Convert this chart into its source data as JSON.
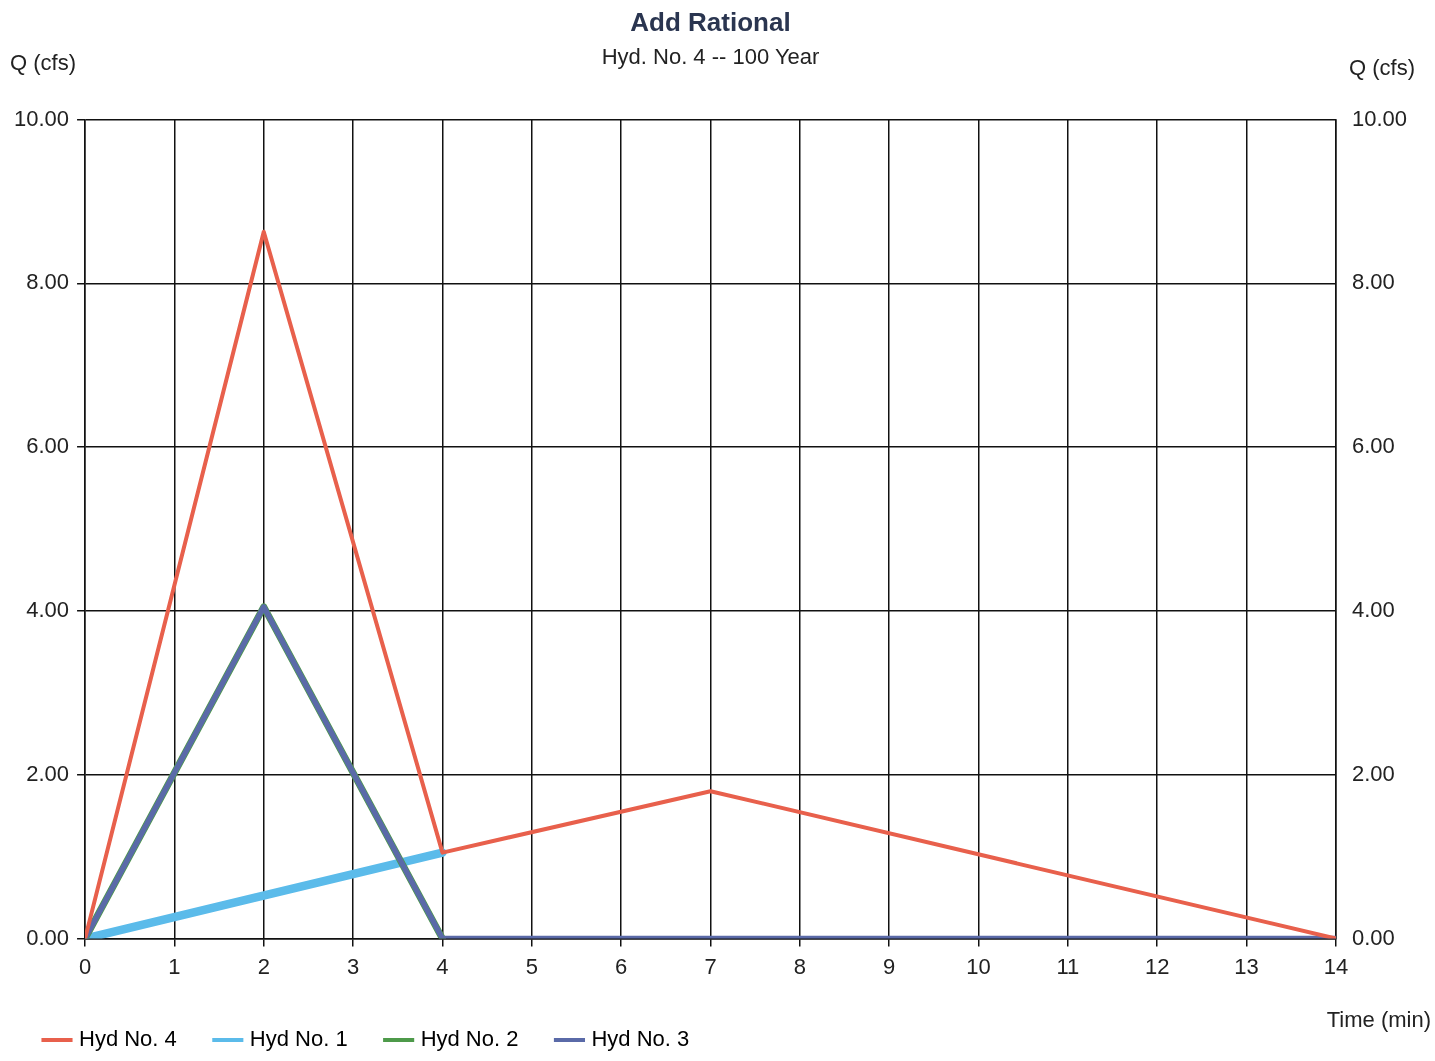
{
  "chart_data": {
    "type": "line",
    "title": "Add Rational",
    "subtitle": "Hyd. No. 4 -- 100 Year",
    "xlabel": "Time (min)",
    "ylabel": "Q (cfs)",
    "y2label": "Q (cfs)",
    "xlim": [
      0,
      14
    ],
    "xticks": [
      0,
      1,
      2,
      3,
      4,
      5,
      6,
      7,
      8,
      9,
      10,
      11,
      12,
      13,
      14
    ],
    "ylim": [
      0,
      10
    ],
    "yticks": [
      {
        "value": 0,
        "label": "0.00"
      },
      {
        "value": 2,
        "label": "2.00"
      },
      {
        "value": 4,
        "label": "4.00"
      },
      {
        "value": 6,
        "label": "6.00"
      },
      {
        "value": 8,
        "label": "8.00"
      },
      {
        "value": 10,
        "label": "10.00"
      }
    ],
    "y2lim": [
      0,
      10
    ],
    "y2ticks": [
      {
        "value": 0,
        "label": "0.00"
      },
      {
        "value": 2,
        "label": "2.00"
      },
      {
        "value": 4,
        "label": "4.00"
      },
      {
        "value": 6,
        "label": "6.00"
      },
      {
        "value": 8,
        "label": "8.00"
      },
      {
        "value": 10,
        "label": "10.00"
      }
    ],
    "grid": true,
    "legend": "bottom",
    "marker": "none",
    "line_style": "solid",
    "series": [
      {
        "name": "Hyd No. 1",
        "color": "#5bbbea",
        "x": [
          0,
          4
        ],
        "values": [
          0,
          1.05
        ]
      },
      {
        "name": "Hyd No. 2",
        "color": "#4e9a4a",
        "x": [
          0,
          2,
          4
        ],
        "values": [
          0,
          4.05,
          0
        ]
      },
      {
        "name": "Hyd No. 3",
        "color": "#5a6aa8",
        "x": [
          0,
          2,
          4,
          14
        ],
        "values": [
          0,
          4.05,
          0,
          0
        ]
      },
      {
        "name": "Hyd No. 4",
        "color": "#e8604c",
        "x": [
          0,
          2,
          4,
          7,
          14
        ],
        "values": [
          0,
          8.63,
          1.05,
          1.8,
          0
        ]
      }
    ]
  }
}
